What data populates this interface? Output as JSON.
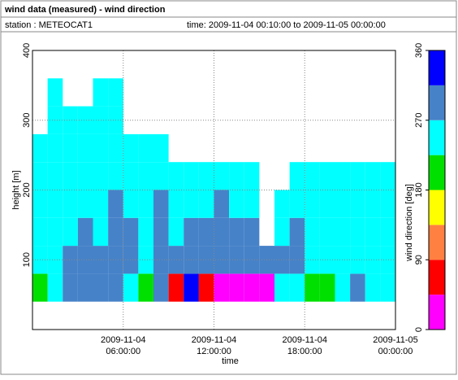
{
  "header": {
    "title": "wind data (measured) - wind direction",
    "station": "station : METEOCAT1",
    "time": "time: 2009-11-04 00:10:00 to 2009-11-05 00:00:00"
  },
  "chart_data": {
    "type": "heatmap",
    "x_label": "time",
    "y_label": "height [m]",
    "colorbar_label": "wind direction [deg]",
    "x": [
      0.5,
      1.5,
      2.5,
      3.5,
      4.5,
      5.5,
      6.5,
      7.5,
      8.5,
      9.5,
      10.5,
      11.5,
      12.5,
      13.5,
      14.5,
      15.5,
      16.5,
      17.5,
      18.5,
      19.5,
      20.5,
      21.5,
      22.5,
      23.5
    ],
    "y": [
      60,
      100,
      140,
      180,
      220,
      260,
      300,
      340
    ],
    "values": [
      [
        202,
        247,
        247,
        247,
        247,
        247,
        null,
        null
      ],
      [
        247,
        247,
        247,
        247,
        247,
        247,
        247,
        247
      ],
      [
        292,
        292,
        247,
        247,
        247,
        247,
        247,
        null
      ],
      [
        292,
        292,
        292,
        247,
        247,
        247,
        247,
        null
      ],
      [
        292,
        292,
        247,
        247,
        247,
        247,
        247,
        247
      ],
      [
        292,
        292,
        292,
        292,
        247,
        247,
        247,
        247
      ],
      [
        247,
        292,
        292,
        247,
        247,
        247,
        null,
        null
      ],
      [
        202,
        247,
        247,
        247,
        247,
        247,
        null,
        null
      ],
      [
        292,
        292,
        292,
        292,
        247,
        247,
        null,
        null
      ],
      [
        67,
        292,
        247,
        247,
        247,
        null,
        null,
        null
      ],
      [
        337,
        292,
        292,
        247,
        247,
        null,
        null,
        null
      ],
      [
        67,
        292,
        292,
        247,
        247,
        null,
        null,
        null
      ],
      [
        22,
        292,
        292,
        292,
        247,
        null,
        null,
        null
      ],
      [
        22,
        292,
        292,
        247,
        247,
        null,
        null,
        null
      ],
      [
        22,
        292,
        292,
        247,
        247,
        null,
        null,
        null
      ],
      [
        22,
        292,
        null,
        null,
        null,
        null,
        null,
        null
      ],
      [
        247,
        292,
        247,
        247,
        null,
        null,
        null,
        null
      ],
      [
        247,
        292,
        292,
        247,
        247,
        null,
        null,
        null
      ],
      [
        202,
        247,
        247,
        247,
        247,
        null,
        null,
        null
      ],
      [
        202,
        247,
        247,
        247,
        247,
        null,
        null,
        null
      ],
      [
        247,
        247,
        247,
        247,
        247,
        null,
        null,
        null
      ],
      [
        292,
        247,
        247,
        247,
        247,
        null,
        null,
        null
      ],
      [
        247,
        247,
        247,
        247,
        247,
        null,
        null,
        null
      ],
      [
        247,
        247,
        247,
        247,
        247,
        null,
        null,
        null
      ]
    ],
    "xlim": [
      0,
      24
    ],
    "ylim": [
      0,
      400
    ],
    "xticks": [
      {
        "value": 6,
        "label": "2009-11-04 06:00:00"
      },
      {
        "value": 12,
        "label": "2009-11-04 12:00:00"
      },
      {
        "value": 18,
        "label": "2009-11-04 18:00:00"
      },
      {
        "value": 24,
        "label": "2009-11-05 00:00:00"
      }
    ],
    "yticks": [
      100,
      200,
      300,
      400
    ],
    "grid": true,
    "colorscale": {
      "bounds": [
        0,
        45,
        90,
        135,
        180,
        225,
        270,
        315,
        360
      ],
      "colors": [
        "#ff00ff",
        "#ff0000",
        "#ff8040",
        "#ffff00",
        "#00e000",
        "#00ffff",
        "#4682c8",
        "#0000ff"
      ]
    },
    "cticks": [
      0,
      90,
      180,
      270,
      360
    ]
  }
}
